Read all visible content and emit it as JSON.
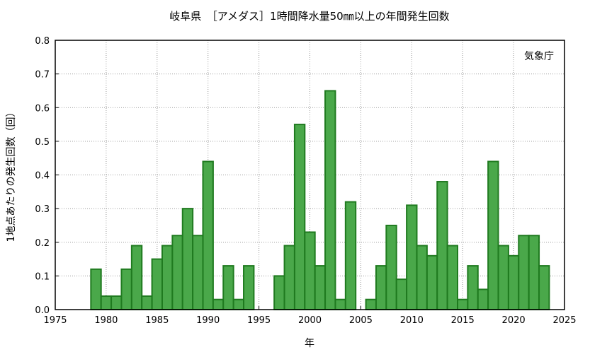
{
  "chart_data": {
    "type": "bar",
    "title": "岐阜県　［アメダス］1時間降水量50㎜以上の年間発生回数",
    "xlabel": "年",
    "ylabel": "1地点あたりの発生回数（回）",
    "annotation": "気象庁",
    "xlim": [
      1975,
      2025
    ],
    "ylim": [
      0,
      0.8
    ],
    "xticks": [
      "1975",
      "1980",
      "1985",
      "1990",
      "1995",
      "2000",
      "2005",
      "2010",
      "2015",
      "2020",
      "2025"
    ],
    "yticks": [
      "0.0",
      "0.1",
      "0.2",
      "0.3",
      "0.4",
      "0.5",
      "0.6",
      "0.7",
      "0.8"
    ],
    "grid": true,
    "colors": {
      "bar_fill": "#4aa84a",
      "bar_edge": "#1f7a1f"
    },
    "x": [
      1979,
      1980,
      1981,
      1982,
      1983,
      1984,
      1985,
      1986,
      1987,
      1988,
      1989,
      1990,
      1991,
      1992,
      1993,
      1994,
      1995,
      1996,
      1997,
      1998,
      1999,
      2000,
      2001,
      2002,
      2003,
      2004,
      2005,
      2006,
      2007,
      2008,
      2009,
      2010,
      2011,
      2012,
      2013,
      2014,
      2015,
      2016,
      2017,
      2018,
      2019,
      2020,
      2021,
      2022,
      2023
    ],
    "values": [
      0.12,
      0.04,
      0.04,
      0.12,
      0.19,
      0.04,
      0.15,
      0.19,
      0.22,
      0.3,
      0.22,
      0.44,
      0.03,
      0.13,
      0.03,
      0.13,
      0,
      0,
      0.1,
      0.19,
      0.55,
      0.23,
      0.13,
      0.65,
      0.03,
      0.32,
      0,
      0.03,
      0.13,
      0.25,
      0.09,
      0.31,
      0.19,
      0.16,
      0.38,
      0.19,
      0.03,
      0.13,
      0.06,
      0.44,
      0.19,
      0.16,
      0.22,
      0.22,
      0.13
    ]
  }
}
